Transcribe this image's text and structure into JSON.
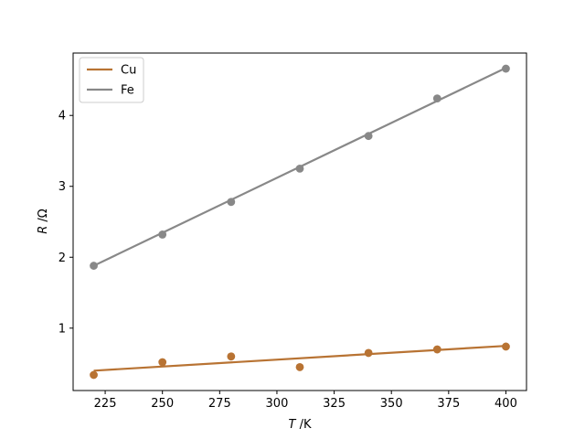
{
  "chart_data": {
    "type": "scatter",
    "xlabel_var": "T",
    "xlabel_unit": " /K",
    "ylabel_var": "R",
    "ylabel_unit": " /Ω",
    "xlim": [
      211,
      409
    ],
    "ylim": [
      0.12,
      4.88
    ],
    "xticks": [
      225,
      250,
      275,
      300,
      325,
      350,
      375,
      400
    ],
    "yticks": [
      1,
      2,
      3,
      4
    ],
    "legend_position": "top-left",
    "grid": false,
    "series": [
      {
        "name": "Cu",
        "color": "#b87333",
        "points_x": [
          220,
          250,
          280,
          310,
          340,
          370,
          400
        ],
        "points_y": [
          0.34,
          0.52,
          0.6,
          0.45,
          0.65,
          0.7,
          0.74
        ],
        "fit_x": [
          220,
          400
        ],
        "fit_y": [
          0.4,
          0.75
        ]
      },
      {
        "name": "Fe",
        "color": "#888888",
        "points_x": [
          220,
          250,
          280,
          310,
          340,
          370,
          400
        ],
        "points_y": [
          1.88,
          2.32,
          2.78,
          3.25,
          3.71,
          4.24,
          4.66
        ],
        "fit_x": [
          220,
          400
        ],
        "fit_y": [
          1.88,
          4.67
        ]
      }
    ]
  }
}
